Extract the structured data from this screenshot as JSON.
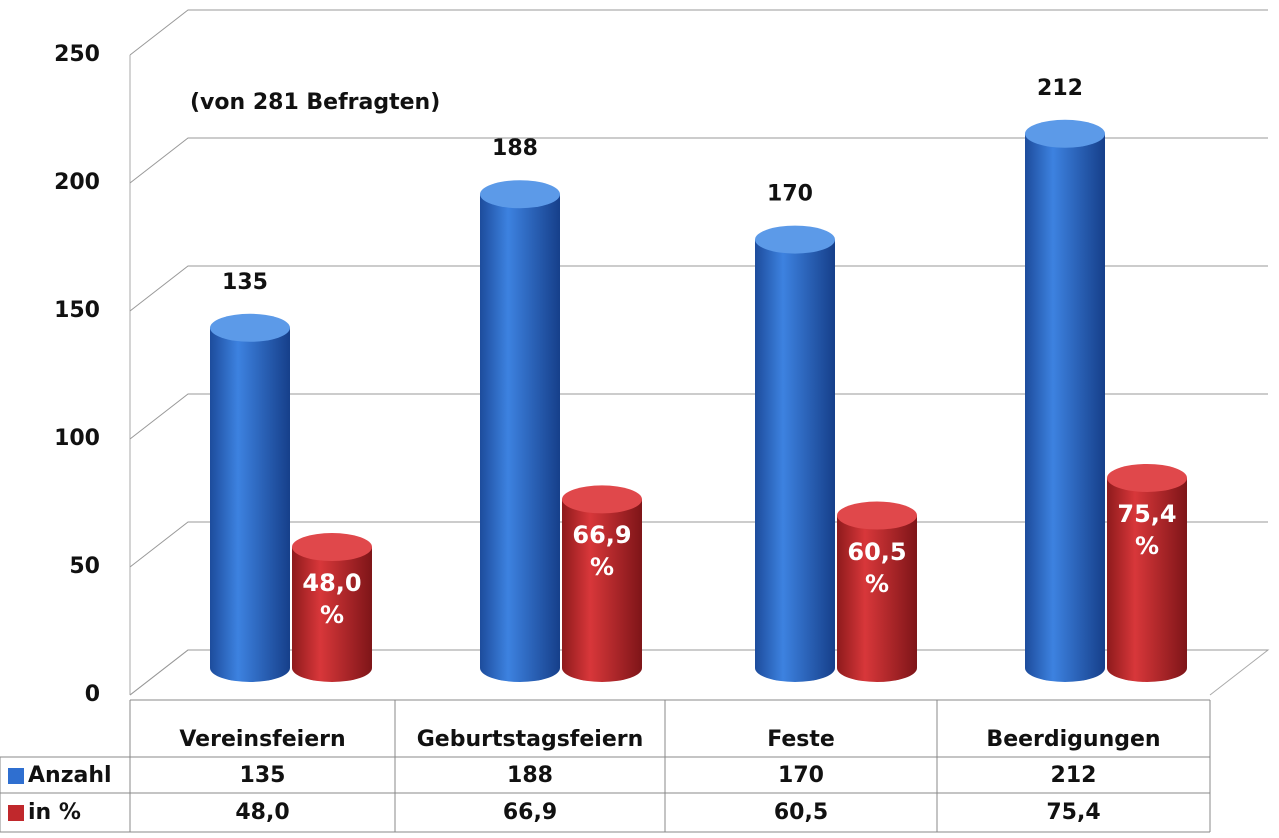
{
  "chart_data": {
    "type": "bar3d",
    "annotation": "(von 281 Befragten)",
    "categories": [
      "Vereinsfeiern",
      "Geburtstagsfeiern",
      "Feste",
      "Beerdigungen"
    ],
    "series": [
      {
        "name": "Anzahl",
        "color": "#2f6fd0",
        "values": [
          135,
          188,
          170,
          212
        ]
      },
      {
        "name": "in %",
        "color": "#c0282c",
        "values": [
          48.0,
          66.9,
          60.5,
          75.4
        ],
        "value_labels": [
          "48,0 %",
          "66,9 %",
          "60,5 %",
          "75,4 %"
        ],
        "table_labels": [
          "48,0",
          "66,9",
          "60,5",
          "75,4"
        ]
      }
    ],
    "ylim": [
      0,
      250
    ],
    "yticks": [
      0,
      50,
      100,
      150,
      200,
      250
    ],
    "grid": true
  }
}
